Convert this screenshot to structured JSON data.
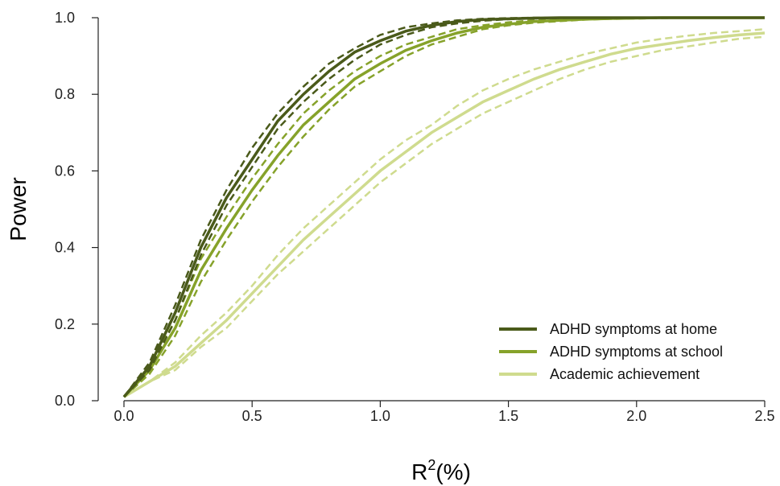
{
  "chart_data": {
    "type": "line",
    "title": "",
    "xlabel_base": "R",
    "xlabel_sup": "2",
    "xlabel_rest": "(%)",
    "ylabel": "Power",
    "xlim": [
      0.0,
      2.5
    ],
    "ylim": [
      0.0,
      1.0
    ],
    "x_ticks": [
      "0.0",
      "0.5",
      "1.0",
      "1.5",
      "2.0",
      "2.5"
    ],
    "y_ticks": [
      "0.0",
      "0.2",
      "0.4",
      "0.6",
      "0.8",
      "1.0"
    ],
    "grid": false,
    "legend_position": "bottom-right",
    "x": [
      0.0,
      0.1,
      0.2,
      0.3,
      0.4,
      0.5,
      0.6,
      0.7,
      0.8,
      0.9,
      1.0,
      1.1,
      1.2,
      1.3,
      1.4,
      1.5,
      1.6,
      1.7,
      1.8,
      1.9,
      2.0,
      2.1,
      2.2,
      2.3,
      2.4,
      2.5
    ],
    "series": [
      {
        "name": "ADHD symptoms at home",
        "color": "#4a5a1a",
        "values": [
          0.01,
          0.09,
          0.23,
          0.4,
          0.53,
          0.63,
          0.73,
          0.8,
          0.86,
          0.91,
          0.94,
          0.965,
          0.98,
          0.99,
          0.995,
          0.997,
          0.999,
          1.0,
          1.0,
          1.0,
          1.0,
          1.0,
          1.0,
          1.0,
          1.0,
          1.0
        ],
        "lower": [
          0.01,
          0.08,
          0.21,
          0.38,
          0.51,
          0.61,
          0.71,
          0.78,
          0.84,
          0.89,
          0.93,
          0.955,
          0.975,
          0.985,
          0.992,
          0.996,
          0.998,
          0.999,
          1.0,
          1.0,
          1.0,
          1.0,
          1.0,
          1.0,
          1.0,
          1.0
        ],
        "upper": [
          0.01,
          0.1,
          0.25,
          0.42,
          0.55,
          0.66,
          0.75,
          0.82,
          0.88,
          0.92,
          0.955,
          0.975,
          0.985,
          0.993,
          0.997,
          0.999,
          1.0,
          1.0,
          1.0,
          1.0,
          1.0,
          1.0,
          1.0,
          1.0,
          1.0,
          1.0
        ]
      },
      {
        "name": "ADHD symptoms at school",
        "color": "#86a22a",
        "values": [
          0.01,
          0.08,
          0.19,
          0.34,
          0.45,
          0.55,
          0.64,
          0.72,
          0.78,
          0.84,
          0.88,
          0.915,
          0.94,
          0.96,
          0.975,
          0.983,
          0.99,
          0.993,
          0.996,
          0.998,
          0.999,
          1.0,
          1.0,
          1.0,
          1.0,
          1.0
        ],
        "lower": [
          0.01,
          0.07,
          0.17,
          0.31,
          0.42,
          0.52,
          0.61,
          0.69,
          0.76,
          0.82,
          0.86,
          0.9,
          0.93,
          0.95,
          0.97,
          0.98,
          0.987,
          0.991,
          0.995,
          0.997,
          0.998,
          0.999,
          1.0,
          1.0,
          1.0,
          1.0
        ],
        "upper": [
          0.01,
          0.09,
          0.21,
          0.37,
          0.48,
          0.58,
          0.67,
          0.75,
          0.81,
          0.86,
          0.9,
          0.93,
          0.95,
          0.97,
          0.98,
          0.988,
          0.993,
          0.996,
          0.998,
          0.999,
          1.0,
          1.0,
          1.0,
          1.0,
          1.0,
          1.0
        ]
      },
      {
        "name": "Academic achievement",
        "color": "#cfdb8e",
        "values": [
          0.01,
          0.05,
          0.09,
          0.15,
          0.21,
          0.28,
          0.35,
          0.42,
          0.48,
          0.54,
          0.6,
          0.65,
          0.7,
          0.74,
          0.78,
          0.81,
          0.84,
          0.865,
          0.885,
          0.905,
          0.92,
          0.93,
          0.94,
          0.948,
          0.955,
          0.96
        ],
        "lower": [
          0.01,
          0.05,
          0.08,
          0.14,
          0.19,
          0.26,
          0.33,
          0.39,
          0.45,
          0.51,
          0.57,
          0.62,
          0.67,
          0.71,
          0.75,
          0.78,
          0.81,
          0.84,
          0.865,
          0.885,
          0.9,
          0.915,
          0.925,
          0.935,
          0.945,
          0.95
        ],
        "upper": [
          0.01,
          0.05,
          0.1,
          0.17,
          0.23,
          0.3,
          0.38,
          0.45,
          0.51,
          0.57,
          0.63,
          0.68,
          0.72,
          0.77,
          0.81,
          0.84,
          0.865,
          0.885,
          0.905,
          0.92,
          0.935,
          0.945,
          0.953,
          0.96,
          0.965,
          0.97
        ]
      }
    ]
  }
}
